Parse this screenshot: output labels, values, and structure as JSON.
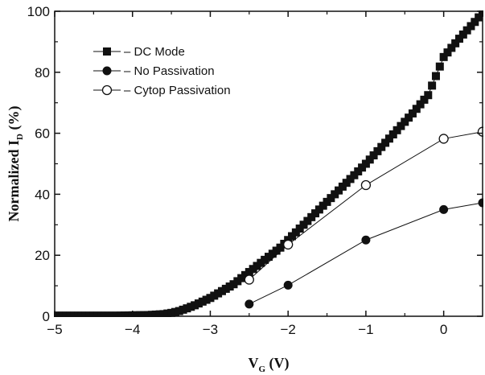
{
  "chart_data": {
    "type": "line",
    "title": "",
    "xlabel": {
      "main": "V",
      "sub": "G",
      "unit": "(V)"
    },
    "ylabel": {
      "main": "Normalized  I",
      "sub": "D",
      "unit": "(%)"
    },
    "xlim": [
      -5,
      0.5
    ],
    "ylim": [
      0,
      100
    ],
    "x_ticks": [
      -5,
      -4,
      -3,
      -2,
      -1,
      0
    ],
    "x_tick_labels": [
      "−5",
      "−4",
      "−3",
      "−2",
      "−1",
      "0"
    ],
    "y_ticks": [
      0,
      20,
      40,
      60,
      80,
      100
    ],
    "y_tick_labels": [
      "0",
      "20",
      "40",
      "60",
      "80",
      "100"
    ],
    "grid": false,
    "legend_position": "top-left",
    "series": [
      {
        "name": "DC Mode",
        "marker": "square-filled",
        "x": [
          -5.0,
          -4.6,
          -4.2,
          -4.0,
          -3.8,
          -3.6,
          -3.5,
          -3.4,
          -3.3,
          -3.2,
          -3.1,
          -3.0,
          -2.9,
          -2.8,
          -2.7,
          -2.6,
          -2.5,
          -2.4,
          -2.3,
          -2.2,
          -2.1,
          -2.0,
          -1.8,
          -1.6,
          -1.4,
          -1.2,
          -1.0,
          -0.8,
          -0.6,
          -0.4,
          -0.2,
          0.0,
          0.2,
          0.4,
          0.5
        ],
        "y": [
          0.2,
          0.2,
          0.2,
          0.3,
          0.4,
          0.7,
          1.1,
          1.7,
          2.6,
          3.6,
          4.8,
          6.0,
          7.5,
          9.0,
          10.5,
          12.5,
          14.5,
          16.5,
          18.5,
          20.5,
          22.5,
          25.0,
          30.0,
          35.0,
          40.0,
          45.0,
          50.0,
          55.5,
          61.0,
          66.5,
          72.5,
          85.0,
          91.0,
          96.5,
          99.5
        ]
      },
      {
        "name": "No Passivation",
        "marker": "circle-filled",
        "x": [
          -2.5,
          -2.0,
          -1.0,
          0.0,
          0.5
        ],
        "y": [
          4.0,
          10.2,
          25.0,
          35.0,
          37.2
        ]
      },
      {
        "name": "Cytop Passivation",
        "marker": "circle-open",
        "x": [
          -2.5,
          -2.0,
          -1.0,
          0.0,
          0.5
        ],
        "y": [
          12.0,
          23.5,
          43.0,
          58.2,
          60.5
        ]
      }
    ]
  }
}
